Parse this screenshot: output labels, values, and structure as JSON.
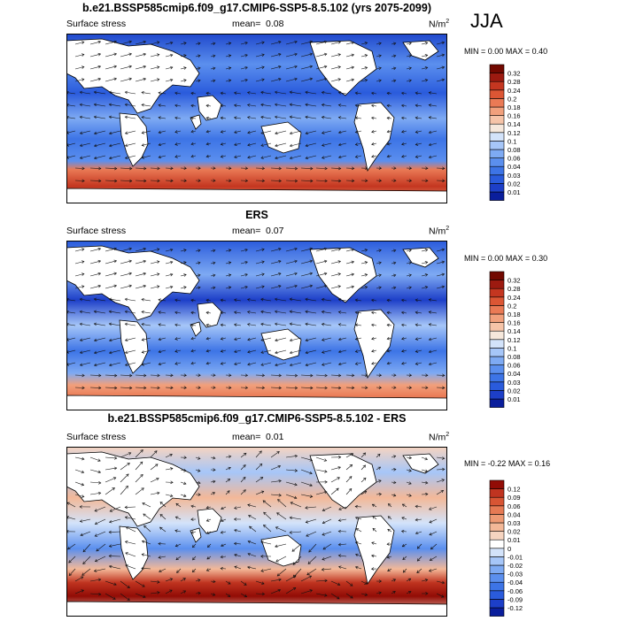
{
  "season": "JJA",
  "chart_data": [
    {
      "type": "heatmap",
      "title": "b.e21.BSSP585cmip6.f09_g17.CMIP6-SSP5-8.5.102 (yrs 2075-2099)",
      "variable": "Surface stress",
      "mean_label": "mean=",
      "mean": "0.08",
      "units": "N/m",
      "units_sup": "2",
      "min_label": "MIN =",
      "min": "0.00",
      "max_label": "MAX =",
      "max": "0.40",
      "overlay": "vector arrows",
      "colorbar": {
        "levels": [
          "0.01",
          "0.02",
          "0.03",
          "0.04",
          "0.06",
          "0.08",
          "0.1",
          "0.12",
          "0.14",
          "0.16",
          "0.18",
          "0.2",
          "0.24",
          "0.28",
          "0.32"
        ],
        "colors": [
          "#0a1e9c",
          "#1d3fc8",
          "#2a5bdc",
          "#3d74e6",
          "#5b8fee",
          "#7eaaf3",
          "#a6c6f8",
          "#d3e3fa",
          "#f6e8dc",
          "#f6c4a8",
          "#f1a07c",
          "#ea7a55",
          "#dc5634",
          "#c43620",
          "#9c1a10",
          "#720800"
        ]
      }
    },
    {
      "type": "heatmap",
      "title": "ERS",
      "variable": "Surface stress",
      "mean_label": "mean=",
      "mean": "0.07",
      "units": "N/m",
      "units_sup": "2",
      "min_label": "MIN =",
      "min": "0.00",
      "max_label": "MAX =",
      "max": "0.30",
      "overlay": "vector arrows",
      "colorbar": {
        "levels": [
          "0.01",
          "0.02",
          "0.03",
          "0.04",
          "0.06",
          "0.08",
          "0.1",
          "0.12",
          "0.14",
          "0.16",
          "0.18",
          "0.2",
          "0.24",
          "0.28",
          "0.32"
        ],
        "colors": [
          "#0a1e9c",
          "#1d3fc8",
          "#2a5bdc",
          "#3d74e6",
          "#5b8fee",
          "#7eaaf3",
          "#a6c6f8",
          "#d3e3fa",
          "#f6e8dc",
          "#f6c4a8",
          "#f1a07c",
          "#ea7a55",
          "#dc5634",
          "#c43620",
          "#9c1a10",
          "#720800"
        ]
      }
    },
    {
      "type": "heatmap",
      "title": "b.e21.BSSP585cmip6.f09_g17.CMIP6-SSP5-8.5.102 - ERS",
      "variable": "Surface stress",
      "mean_label": "mean=",
      "mean": "0.01",
      "units": "N/m",
      "units_sup": "2",
      "min_label": "MIN =",
      "min": "-0.22",
      "max_label": "MAX =",
      "max": "0.16",
      "overlay": "vector arrows",
      "colorbar": {
        "levels": [
          "-0.12",
          "-0.09",
          "-0.06",
          "-0.04",
          "-0.03",
          "-0.02",
          "-0.01",
          "0",
          "0.01",
          "0.02",
          "0.03",
          "0.04",
          "0.06",
          "0.09",
          "0.12"
        ],
        "colors": [
          "#0a1e9c",
          "#1d3fc8",
          "#2a5bdc",
          "#3d74e6",
          "#5b8fee",
          "#7eaaf3",
          "#a6c6f8",
          "#d3e3fa",
          "#ffffff",
          "#f6d4c0",
          "#f3b898",
          "#ee9a74",
          "#e67a54",
          "#d85534",
          "#c03420",
          "#920c06"
        ]
      }
    }
  ]
}
